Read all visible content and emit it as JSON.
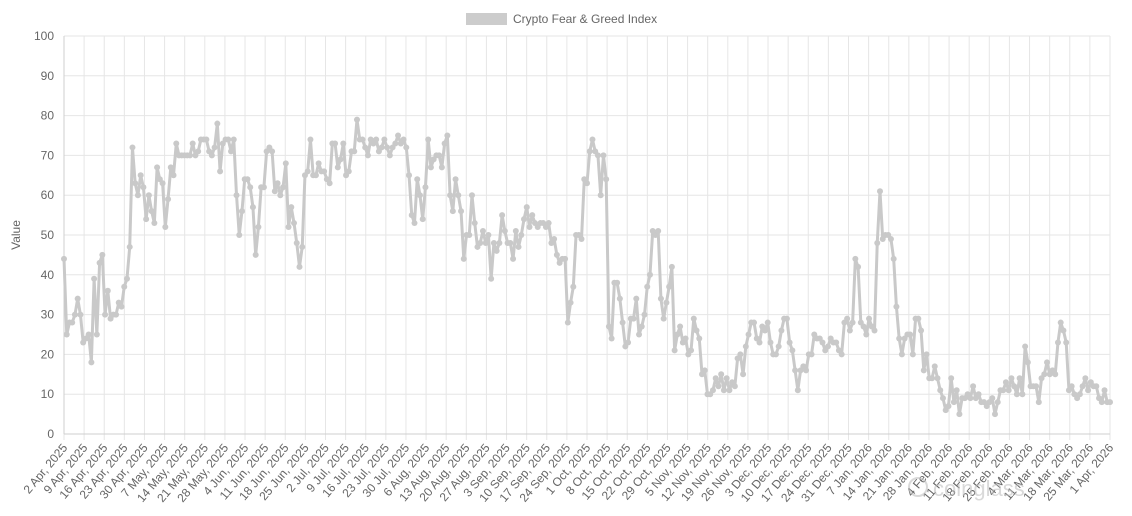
{
  "chart_data": {
    "type": "line",
    "title": "",
    "legend": {
      "position": "top",
      "labels": [
        "Crypto Fear & Greed Index"
      ]
    },
    "xlabel": "",
    "ylabel": "Value",
    "ylim": [
      0,
      100
    ],
    "yticks": [
      "0",
      "10",
      "20",
      "30",
      "40",
      "50",
      "60",
      "70",
      "80",
      "90",
      "100"
    ],
    "grid": true,
    "colors": {
      "series": "#c9c9c9",
      "grid": "#e6e6e6",
      "axis": "#666666"
    },
    "xtick_labels": [
      "2 Apr, 2025",
      "9 Apr, 2025",
      "16 Apr, 2025",
      "23 Apr, 2025",
      "30 Apr, 2025",
      "7 May, 2025",
      "14 May, 2025",
      "21 May, 2025",
      "28 May, 2025",
      "4 Jun, 2025",
      "11 Jun, 2025",
      "18 Jun, 2025",
      "25 Jun, 2025",
      "2 Jul, 2025",
      "9 Jul, 2025",
      "16 Jul, 2025",
      "23 Jul, 2025",
      "30 Jul, 2025",
      "6 Aug, 2025",
      "13 Aug, 2025",
      "20 Aug, 2025",
      "27 Aug, 2025",
      "3 Sep, 2025",
      "10 Sep, 2025",
      "17 Sep, 2025",
      "24 Sep, 2025",
      "1 Oct, 2025",
      "8 Oct, 2025",
      "15 Oct, 2025",
      "22 Oct, 2025",
      "29 Oct, 2025",
      "5 Nov, 2025",
      "12 Nov, 2025",
      "19 Nov, 2025",
      "26 Nov, 2025",
      "3 Dec, 2025",
      "10 Dec, 2025",
      "17 Dec, 2025",
      "24 Dec, 2025",
      "31 Dec, 2025",
      "7 Jan, 2026",
      "14 Jan, 2026",
      "21 Jan, 2026",
      "28 Jan, 2026",
      "4 Feb, 2026",
      "11 Feb, 2026",
      "18 Feb, 2026",
      "25 Feb, 2026",
      "4 Mar, 2026",
      "11 Mar, 2026",
      "18 Mar, 2026",
      "25 Mar, 2026",
      "1 Apr, 2026"
    ],
    "series": [
      {
        "name": "Crypto Fear & Greed Index",
        "values": [
          44,
          25,
          28,
          28,
          30,
          34,
          30,
          23,
          24,
          25,
          18,
          39,
          25,
          43,
          45,
          30,
          36,
          29,
          30,
          30,
          33,
          32,
          37,
          39,
          47,
          72,
          63,
          60,
          65,
          62,
          54,
          60,
          56,
          53,
          67,
          64,
          63,
          52,
          59,
          67,
          65,
          73,
          70,
          70,
          70,
          70,
          70,
          73,
          70,
          71,
          74,
          74,
          74,
          71,
          70,
          72,
          78,
          66,
          73,
          74,
          74,
          71,
          74,
          60,
          50,
          56,
          64,
          64,
          62,
          57,
          45,
          52,
          62,
          62,
          71,
          72,
          71,
          61,
          63,
          60,
          62,
          68,
          52,
          57,
          53,
          48,
          42,
          47,
          65,
          66,
          74,
          65,
          65,
          68,
          66,
          66,
          64,
          63,
          73,
          73,
          67,
          69,
          73,
          65,
          66,
          71,
          71,
          79,
          74,
          74,
          72,
          70,
          74,
          73,
          74,
          71,
          72,
          74,
          72,
          70,
          72,
          73,
          75,
          73,
          74,
          72,
          65,
          55,
          53,
          64,
          60,
          54,
          62,
          74,
          67,
          69,
          70,
          70,
          67,
          73,
          75,
          60,
          56,
          64,
          60,
          56,
          44,
          50,
          50,
          60,
          53,
          47,
          48,
          51,
          48,
          50,
          39,
          48,
          46,
          48,
          55,
          51,
          48,
          48,
          44,
          51,
          47,
          50,
          54,
          57,
          52,
          55,
          53,
          52,
          53,
          53,
          52,
          53,
          48,
          49,
          45,
          43,
          44,
          44,
          28,
          33,
          37,
          50,
          50,
          49,
          64,
          63,
          71,
          74,
          71,
          70,
          60,
          70,
          64,
          27,
          24,
          38,
          38,
          34,
          28,
          22,
          23,
          29,
          29,
          34,
          25,
          27,
          30,
          37,
          40,
          51,
          50,
          51,
          34,
          29,
          33,
          37,
          42,
          21,
          25,
          27,
          23,
          24,
          20,
          21,
          29,
          26,
          24,
          15,
          16,
          10,
          10,
          11,
          14,
          12,
          15,
          11,
          14,
          11,
          13,
          12,
          19,
          20,
          15,
          22,
          25,
          28,
          28,
          24,
          23,
          27,
          26,
          28,
          23,
          20,
          20,
          22,
          26,
          29,
          29,
          23,
          21,
          16,
          11,
          16,
          17,
          16,
          20,
          20,
          25,
          24,
          24,
          23,
          21,
          22,
          24,
          23,
          23,
          21,
          20,
          28,
          29,
          26,
          28,
          44,
          42,
          28,
          27,
          25,
          29,
          27,
          26,
          48,
          61,
          49,
          50,
          50,
          49,
          44,
          32,
          24,
          20,
          24,
          25,
          25,
          20,
          29,
          29,
          26,
          16,
          20,
          14,
          14,
          17,
          14,
          11,
          9,
          6,
          7,
          14,
          8,
          11,
          5,
          9,
          9,
          10,
          9,
          12,
          9,
          10,
          8,
          8,
          7,
          8,
          9,
          5,
          8,
          11,
          11,
          13,
          11,
          14,
          12,
          10,
          14,
          10,
          22,
          18,
          12,
          12,
          12,
          8,
          14,
          15,
          18,
          15,
          16,
          15,
          23,
          28,
          26,
          23,
          11,
          12,
          10,
          9,
          10,
          12,
          14,
          11,
          13,
          12,
          12,
          9,
          8,
          11,
          8,
          8
        ]
      }
    ],
    "watermark": "coinglass"
  }
}
